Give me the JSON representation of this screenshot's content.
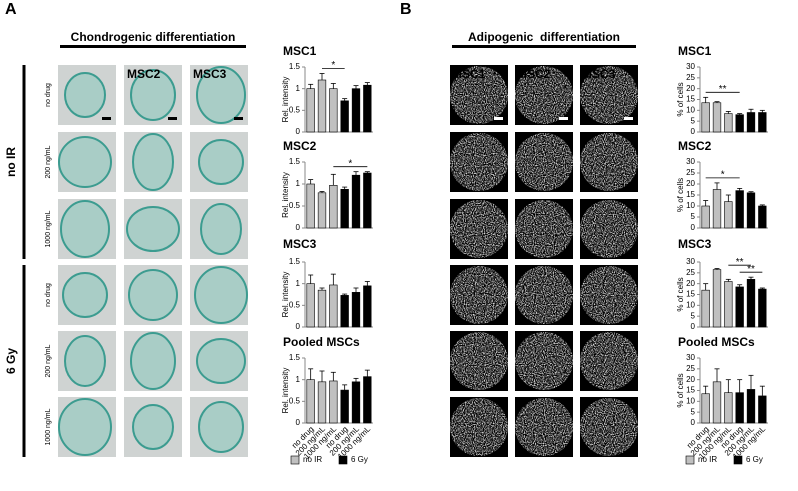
{
  "panels": [
    {
      "label": "A",
      "title": "Chondrogenic differentiation",
      "row_groups": [
        "no IR",
        "6 Gy"
      ],
      "row_labels": [
        "no drug",
        "200 ng/mL",
        "1000 ng/mL",
        "no drug",
        "200 ng/mL",
        "1000 ng/mL"
      ],
      "column_labels": [
        "MSC2",
        "MSC3"
      ]
    },
    {
      "label": "B",
      "title": "Adipogenic  differentiation",
      "column_labels": [
        "MSC1",
        "MSC2",
        "MSC3"
      ]
    }
  ],
  "chart_data": [
    {
      "type": "bar",
      "title": "MSC1",
      "ylabel": "Rel. intensity",
      "ylim": [
        0,
        1.5
      ],
      "yticks": [
        0,
        0.5,
        1,
        1.5
      ],
      "values": [
        1.0,
        1.2,
        1.0,
        0.72,
        1.0,
        1.08
      ],
      "errors": [
        0.1,
        0.15,
        0.12,
        0.05,
        0.07,
        0.06
      ],
      "colors": [
        "#c0c0c0",
        "#c0c0c0",
        "#c0c0c0",
        "#000000",
        "#000000",
        "#000000"
      ],
      "annotations": [
        {
          "text": "*",
          "from": 1,
          "to": 3
        }
      ]
    },
    {
      "type": "bar",
      "title": "MSC2",
      "ylabel": "Rel. intensity",
      "ylim": [
        0,
        1.5
      ],
      "yticks": [
        0,
        0.5,
        1,
        1.5
      ],
      "values": [
        1.0,
        0.8,
        0.97,
        0.88,
        1.2,
        1.25
      ],
      "errors": [
        0.1,
        0.03,
        0.25,
        0.05,
        0.08,
        0.03
      ],
      "colors": [
        "#c0c0c0",
        "#c0c0c0",
        "#c0c0c0",
        "#000000",
        "#000000",
        "#000000"
      ],
      "annotations": [
        {
          "text": "*",
          "from": 2,
          "to": 5
        }
      ]
    },
    {
      "type": "bar",
      "title": "MSC3",
      "ylabel": "Rel. intensity",
      "ylim": [
        0,
        1.5
      ],
      "yticks": [
        0,
        0.5,
        1,
        1.5
      ],
      "values": [
        1.0,
        0.85,
        0.97,
        0.73,
        0.8,
        0.95
      ],
      "errors": [
        0.2,
        0.05,
        0.25,
        0.03,
        0.1,
        0.1
      ],
      "colors": [
        "#c0c0c0",
        "#c0c0c0",
        "#c0c0c0",
        "#000000",
        "#000000",
        "#000000"
      ]
    },
    {
      "type": "bar",
      "title": "Pooled MSCs",
      "ylabel": "Rel. intensity",
      "ylim": [
        0,
        1.5
      ],
      "yticks": [
        0,
        0.5,
        1,
        1.5
      ],
      "values": [
        1.0,
        0.95,
        0.97,
        0.76,
        0.95,
        1.07
      ],
      "errors": [
        0.25,
        0.25,
        0.2,
        0.12,
        0.08,
        0.15
      ],
      "colors": [
        "#c0c0c0",
        "#c0c0c0",
        "#c0c0c0",
        "#000000",
        "#000000",
        "#000000"
      ],
      "categories": [
        "no drug",
        "200 ng/mL",
        "1000 ng/mL",
        "no drug",
        "200 ng/mL",
        "1000 ng/mL"
      ],
      "legend": [
        {
          "name": "no IR",
          "color": "#c0c0c0"
        },
        {
          "name": "6 Gy",
          "color": "#000000"
        }
      ]
    },
    {
      "type": "bar",
      "title": "MSC1",
      "ylabel": "% of cells",
      "ylim": [
        0,
        30
      ],
      "yticks": [
        0,
        5,
        10,
        15,
        20,
        25,
        30
      ],
      "values": [
        13.5,
        13.5,
        8.5,
        8,
        9,
        9
      ],
      "errors": [
        2.5,
        0.5,
        1,
        0.5,
        1.5,
        1
      ],
      "colors": [
        "#c0c0c0",
        "#c0c0c0",
        "#c0c0c0",
        "#000000",
        "#000000",
        "#000000"
      ],
      "annotations": [
        {
          "text": "**",
          "from": 0,
          "to": 3
        }
      ]
    },
    {
      "type": "bar",
      "title": "MSC2",
      "ylabel": "% of cells",
      "ylim": [
        0,
        30
      ],
      "yticks": [
        0,
        5,
        10,
        15,
        20,
        25,
        30
      ],
      "values": [
        10,
        17.5,
        12,
        17,
        16,
        10
      ],
      "errors": [
        2.5,
        3,
        3,
        1,
        0.5,
        0.5
      ],
      "colors": [
        "#c0c0c0",
        "#c0c0c0",
        "#c0c0c0",
        "#000000",
        "#000000",
        "#000000"
      ],
      "annotations": [
        {
          "text": "*",
          "from": 0,
          "to": 3
        }
      ]
    },
    {
      "type": "bar",
      "title": "MSC3",
      "ylabel": "% of cells",
      "ylim": [
        0,
        30
      ],
      "yticks": [
        0,
        5,
        10,
        15,
        20,
        25,
        30
      ],
      "values": [
        17,
        26.5,
        21,
        18.5,
        22,
        17.5
      ],
      "errors": [
        3,
        0.5,
        1,
        1,
        1,
        0.5
      ],
      "colors": [
        "#c0c0c0",
        "#c0c0c0",
        "#c0c0c0",
        "#000000",
        "#000000",
        "#000000"
      ],
      "annotations": [
        {
          "text": "**",
          "from": 3,
          "to": 5
        },
        {
          "text": "**",
          "from": 2,
          "to": 4
        }
      ]
    },
    {
      "type": "bar",
      "title": "Pooled MSCs",
      "ylabel": "% of cells",
      "ylim": [
        0,
        30
      ],
      "yticks": [
        0,
        5,
        10,
        15,
        20,
        25,
        30
      ],
      "values": [
        13.5,
        19,
        14,
        14,
        15.5,
        12.5
      ],
      "errors": [
        3.5,
        6,
        6,
        6,
        6.5,
        4.5
      ],
      "colors": [
        "#c0c0c0",
        "#c0c0c0",
        "#c0c0c0",
        "#000000",
        "#000000",
        "#000000"
      ],
      "categories": [
        "no drug",
        "200 ng/mL",
        "1000 ng/mL",
        "no drug",
        "200 ng/mL",
        "1000 ng/mL"
      ],
      "legend": [
        {
          "name": "no IR",
          "color": "#c0c0c0"
        },
        {
          "name": "6 Gy",
          "color": "#000000"
        }
      ]
    }
  ]
}
